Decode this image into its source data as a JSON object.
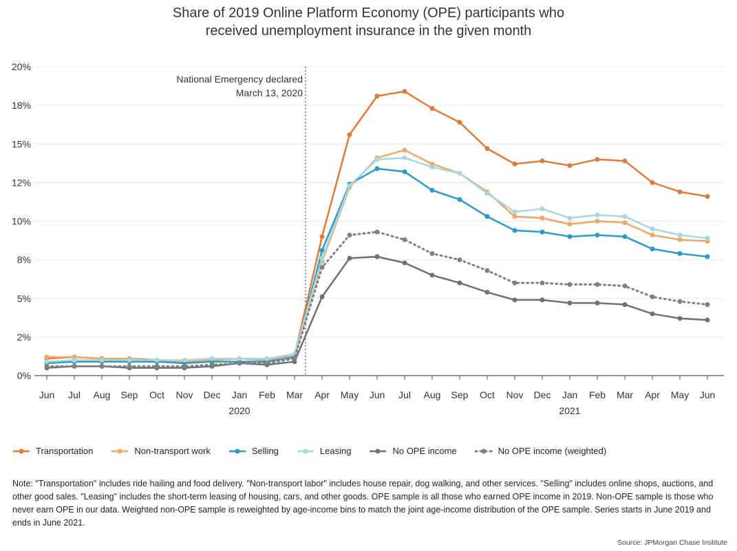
{
  "title_lines": [
    "Share of 2019 Online Platform Economy (OPE) participants who",
    "received unemployment insurance in the given month"
  ],
  "chart_data": {
    "type": "line",
    "title": "Share of 2019 Online Platform Economy (OPE) participants who received unemployment insurance in the given month",
    "xlabel": "",
    "ylabel": "",
    "ylim": [
      0,
      20
    ],
    "y_ticks": [
      0,
      2.5,
      5,
      7.5,
      10,
      12.5,
      15,
      17.5,
      20
    ],
    "y_tick_labels": [
      "0%",
      "2%",
      "5%",
      "8%",
      "10%",
      "12%",
      "15%",
      "18%",
      "20%"
    ],
    "categories": [
      "Jun",
      "Jul",
      "Aug",
      "Sep",
      "Oct",
      "Nov",
      "Dec",
      "Jan",
      "Feb",
      "Mar",
      "Apr",
      "May",
      "Jun",
      "Jul",
      "Aug",
      "Sep",
      "Oct",
      "Nov",
      "Dec",
      "Jan",
      "Feb",
      "Mar",
      "Apr",
      "May",
      "Jun"
    ],
    "year_labels": [
      {
        "label": "2020",
        "index": 7
      },
      {
        "label": "2021",
        "index": 19
      }
    ],
    "annotation": {
      "lines": [
        "National Emergency declared",
        "March 13, 2020"
      ],
      "x_index": 9.4
    },
    "grid": true,
    "series": [
      {
        "name": "Transportation",
        "color": "#E07A35",
        "dashed": false,
        "values": [
          1.1,
          1.2,
          1.1,
          1.1,
          1.0,
          0.9,
          1.0,
          1.1,
          1.0,
          1.3,
          9.0,
          15.6,
          18.1,
          18.4,
          17.3,
          16.4,
          14.7,
          13.7,
          13.9,
          13.6,
          14.0,
          13.9,
          12.5,
          11.9,
          11.6
        ]
      },
      {
        "name": "Non-transport work",
        "color": "#F0A762",
        "dashed": false,
        "values": [
          1.2,
          1.2,
          1.1,
          1.1,
          0.9,
          0.9,
          1.0,
          1.1,
          1.0,
          1.3,
          7.4,
          12.2,
          14.1,
          14.6,
          13.7,
          13.1,
          11.9,
          10.3,
          10.2,
          9.8,
          10.0,
          9.9,
          9.1,
          8.8,
          8.7
        ]
      },
      {
        "name": "Selling",
        "color": "#2A9AC9",
        "dashed": false,
        "values": [
          0.8,
          0.9,
          0.9,
          0.9,
          0.9,
          0.8,
          0.9,
          0.9,
          0.9,
          1.2,
          8.1,
          12.4,
          13.4,
          13.2,
          12.0,
          11.4,
          10.3,
          9.4,
          9.3,
          9.0,
          9.1,
          9.0,
          8.2,
          7.9,
          7.7
        ]
      },
      {
        "name": "Leasing",
        "color": "#A6D8E0",
        "dashed": false,
        "values": [
          0.9,
          1.0,
          1.0,
          1.0,
          1.0,
          1.0,
          1.1,
          1.1,
          1.1,
          1.4,
          7.6,
          12.3,
          14.0,
          14.1,
          13.5,
          13.1,
          11.8,
          10.6,
          10.8,
          10.2,
          10.4,
          10.3,
          9.5,
          9.1,
          8.9
        ]
      },
      {
        "name": "No OPE income",
        "color": "#707070",
        "dashed": false,
        "values": [
          0.5,
          0.6,
          0.6,
          0.5,
          0.5,
          0.5,
          0.6,
          0.8,
          0.7,
          0.9,
          5.1,
          7.6,
          7.7,
          7.3,
          6.5,
          6.0,
          5.4,
          4.9,
          4.9,
          4.7,
          4.7,
          4.6,
          4.0,
          3.7,
          3.6
        ]
      },
      {
        "name": "No OPE income (weighted)",
        "color": "#808080",
        "dashed": true,
        "values": [
          0.6,
          0.6,
          0.6,
          0.6,
          0.6,
          0.6,
          0.7,
          0.8,
          0.8,
          1.1,
          7.0,
          9.1,
          9.3,
          8.8,
          7.9,
          7.5,
          6.8,
          6.0,
          6.0,
          5.9,
          5.9,
          5.8,
          5.1,
          4.8,
          4.6
        ]
      }
    ]
  },
  "note": "Note: \"Transportation\" includes ride hailing and food delivery. \"Non-transport labor\" includes house repair, dog walking, and other services. \"Selling\" includes online shops, auctions, and other good sales. \"Leasing\" includes the short-term leasing of housing, cars, and other goods. OPE sample is all those who earned OPE income in 2019. Non-OPE sample is those who never earn OPE in our data. Weighted non-OPE sample is reweighted by age-income bins to match the joint age-income distribution of the OPE sample. Series starts in June 2019 and ends in June 2021.",
  "source": "Source: JPMorgan Chase Institute"
}
